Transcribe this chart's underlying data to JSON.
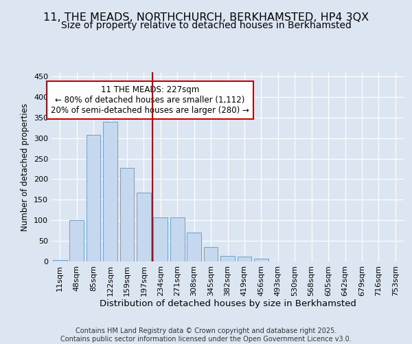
{
  "title": "11, THE MEADS, NORTHCHURCH, BERKHAMSTED, HP4 3QX",
  "subtitle": "Size of property relative to detached houses in Berkhamsted",
  "xlabel": "Distribution of detached houses by size in Berkhamsted",
  "ylabel": "Number of detached properties",
  "categories": [
    "11sqm",
    "48sqm",
    "85sqm",
    "122sqm",
    "159sqm",
    "197sqm",
    "234sqm",
    "271sqm",
    "308sqm",
    "345sqm",
    "382sqm",
    "419sqm",
    "456sqm",
    "493sqm",
    "530sqm",
    "568sqm",
    "605sqm",
    "642sqm",
    "679sqm",
    "716sqm",
    "753sqm"
  ],
  "values": [
    4,
    100,
    308,
    340,
    228,
    168,
    107,
    107,
    70,
    35,
    14,
    12,
    6,
    0,
    0,
    0,
    0,
    0,
    0,
    0,
    0
  ],
  "bar_color": "#c5d8ee",
  "bar_edge_color": "#6fa0cc",
  "vline_x": 5.5,
  "vline_color": "#cc0000",
  "annotation_text": "11 THE MEADS: 227sqm\n← 80% of detached houses are smaller (1,112)\n20% of semi-detached houses are larger (280) →",
  "annotation_box_color": "#ffffff",
  "annotation_box_edge": "#cc0000",
  "bg_color": "#dce6f2",
  "plot_bg_color": "#dce6f2",
  "footer": "Contains HM Land Registry data © Crown copyright and database right 2025.\nContains public sector information licensed under the Open Government Licence v3.0.",
  "ylim": [
    0,
    460
  ],
  "yticks": [
    0,
    50,
    100,
    150,
    200,
    250,
    300,
    350,
    400,
    450
  ],
  "title_fontsize": 11.5,
  "subtitle_fontsize": 10,
  "xlabel_fontsize": 9.5,
  "ylabel_fontsize": 8.5,
  "tick_fontsize": 8,
  "footer_fontsize": 7,
  "annotation_fontsize": 8.5
}
